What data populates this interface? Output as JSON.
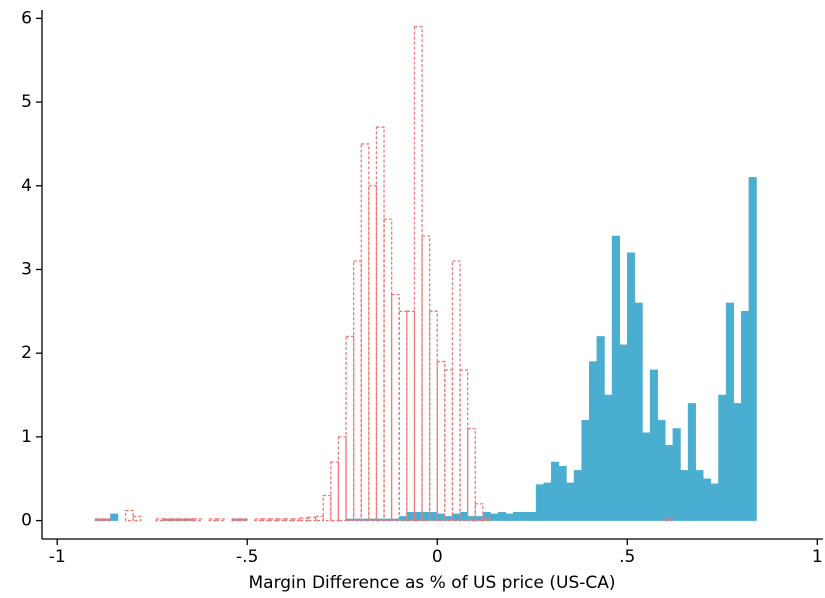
{
  "chart_data": {
    "type": "histogram",
    "xlabel": "Margin Difference as % of US price (US-CA)",
    "bins": [
      -0.9,
      -0.88,
      -0.86,
      -0.84,
      -0.82,
      -0.8,
      -0.78,
      -0.76,
      -0.74,
      -0.72,
      -0.7,
      -0.68,
      -0.66,
      -0.64,
      -0.62,
      -0.6,
      -0.58,
      -0.56,
      -0.54,
      -0.52,
      -0.5,
      -0.48,
      -0.46,
      -0.44,
      -0.42,
      -0.4,
      -0.38,
      -0.36,
      -0.34,
      -0.32,
      -0.3,
      -0.28,
      -0.26,
      -0.24,
      -0.22,
      -0.2,
      -0.18,
      -0.16,
      -0.14,
      -0.12,
      -0.1,
      -0.08,
      -0.06,
      -0.04,
      -0.02,
      0,
      0.02,
      0.04,
      0.06,
      0.08,
      0.1,
      0.12,
      0.14,
      0.16,
      0.18,
      0.2,
      0.22,
      0.24,
      0.26,
      0.28,
      0.3,
      0.32,
      0.34,
      0.36,
      0.38,
      0.4,
      0.42,
      0.44,
      0.46,
      0.48,
      0.5,
      0.52,
      0.54,
      0.56,
      0.58,
      0.6,
      0.62,
      0.64,
      0.66,
      0.68,
      0.7,
      0.72,
      0.74,
      0.76,
      0.78,
      0.8,
      0.82,
      0.84
    ],
    "series": [
      {
        "color": "#4aaed0",
        "dashed": false,
        "values": [
          0.02,
          0.02,
          0.08,
          0,
          0,
          0,
          0,
          0,
          0,
          0.02,
          0.02,
          0.02,
          0.02,
          0,
          0,
          0,
          0,
          0,
          0.02,
          0.02,
          0,
          0,
          0,
          0,
          0,
          0,
          0,
          0,
          0,
          0,
          0,
          0,
          0,
          0.02,
          0.02,
          0.02,
          0.02,
          0.02,
          0.02,
          0.02,
          0.05,
          0.1,
          0.1,
          0.1,
          0.1,
          0.08,
          0.05,
          0.08,
          0.1,
          0.05,
          0.05,
          0.1,
          0.08,
          0.1,
          0.08,
          0.1,
          0.1,
          0.1,
          0.43,
          0.45,
          0.7,
          0.65,
          0.45,
          0.6,
          1.2,
          1.9,
          2.2,
          1.5,
          3.4,
          2.1,
          3.2,
          2.6,
          1.05,
          1.8,
          1.2,
          0.9,
          1.1,
          0.6,
          1.4,
          0.6,
          0.5,
          0.44,
          1.5,
          2.6,
          1.4,
          2.5,
          4.1
        ]
      },
      {
        "color": "#f07878",
        "dashed": true,
        "values": [
          0.02,
          0.02,
          0,
          0,
          0.12,
          0.05,
          0,
          0,
          0.02,
          0.02,
          0.02,
          0.02,
          0.02,
          0.02,
          0,
          0.02,
          0.02,
          0,
          0.02,
          0.02,
          0,
          0.02,
          0.02,
          0.02,
          0.02,
          0.02,
          0.02,
          0.03,
          0.04,
          0.05,
          0.3,
          0.7,
          1.0,
          2.2,
          3.1,
          4.5,
          4.0,
          4.7,
          3.6,
          2.7,
          2.5,
          2.5,
          5.9,
          3.4,
          2.5,
          1.9,
          1.8,
          3.1,
          1.8,
          1.1,
          0.2,
          0.02,
          0,
          0,
          0,
          0,
          0,
          0,
          0,
          0,
          0,
          0,
          0,
          0,
          0,
          0,
          0,
          0,
          0,
          0,
          0,
          0,
          0,
          0,
          0,
          0.02,
          0,
          0,
          0,
          0,
          0,
          0,
          0,
          0,
          0,
          0,
          0
        ]
      }
    ],
    "xlim": [
      -1.04,
      1.015
    ],
    "xticks": [
      -1,
      {
        "value": -0.5,
        "label": "-.5"
      },
      0,
      {
        "value": 0.5,
        "label": ".5"
      },
      1
    ],
    "ylim": [
      -0.22,
      6.1
    ],
    "yticks": [
      0,
      1,
      2,
      3,
      4,
      5,
      6
    ]
  }
}
